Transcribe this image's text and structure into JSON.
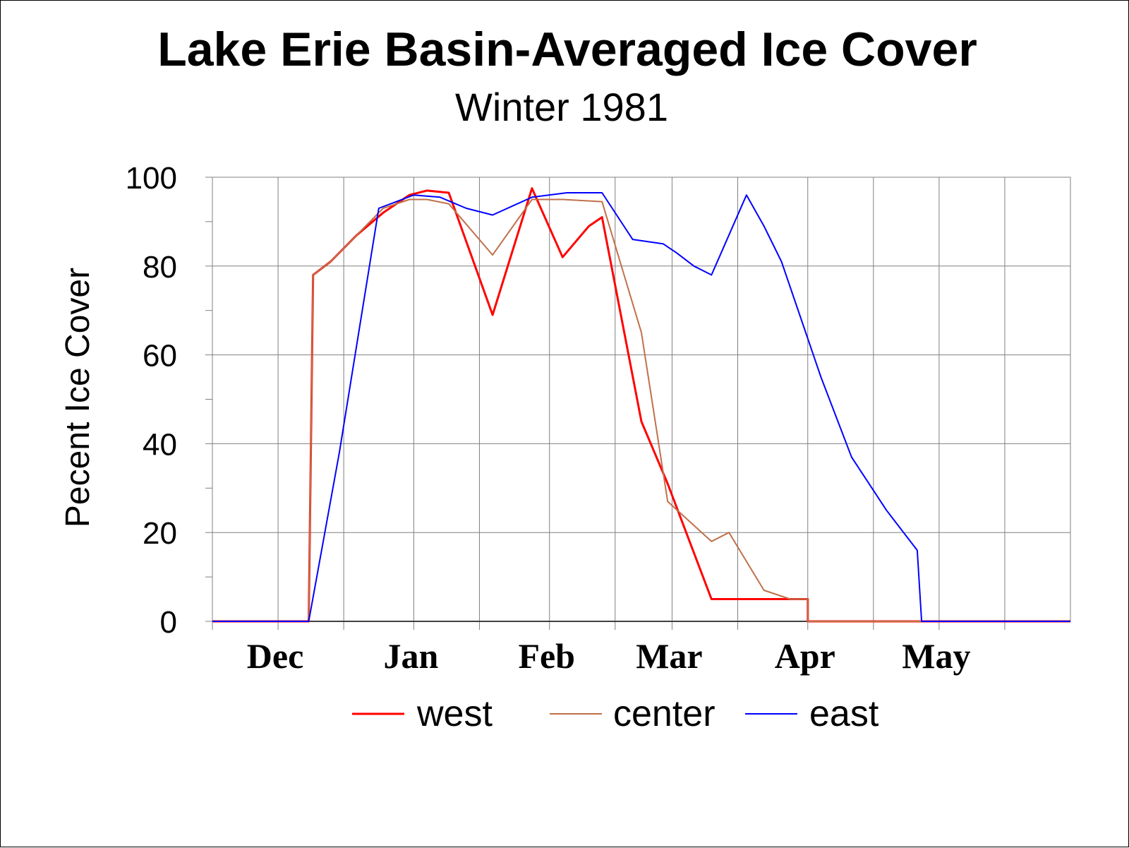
{
  "chart_data": {
    "type": "line",
    "title": "Lake Erie Basin-Averaged Ice Cover",
    "subtitle": "Winter 1981",
    "xlabel": "",
    "ylabel": "Pecent Ice Cover",
    "ylim": [
      0,
      100
    ],
    "yticks": [
      "0",
      "20",
      "40",
      "60",
      "80",
      "100"
    ],
    "xlim": [
      "Nov 16",
      "May 31"
    ],
    "months": [
      {
        "label": "Dec",
        "date": "Dec 1"
      },
      {
        "label": "Jan",
        "date": "Jan 1"
      },
      {
        "label": "Feb",
        "date": "Feb 1"
      },
      {
        "label": "Mar",
        "date": "Mar 1"
      },
      {
        "label": "Apr",
        "date": "Apr 1"
      },
      {
        "label": "May",
        "date": "May 1"
      }
    ],
    "grid": true,
    "legend_position": "bottom",
    "series": [
      {
        "name": "west",
        "color": "#ff0000",
        "points": [
          [
            "Nov 16",
            0
          ],
          [
            "Dec 8",
            0
          ],
          [
            "Dec 9",
            78
          ],
          [
            "Dec 13",
            81
          ],
          [
            "Dec 19",
            87
          ],
          [
            "Dec 25",
            92
          ],
          [
            "Dec 31",
            96
          ],
          [
            "Jan 4",
            97
          ],
          [
            "Jan 9",
            96.5
          ],
          [
            "Jan 19",
            69
          ],
          [
            "Jan 28",
            97.5
          ],
          [
            "Feb 4",
            82
          ],
          [
            "Feb 10",
            89
          ],
          [
            "Feb 13",
            91
          ],
          [
            "Feb 22",
            45
          ],
          [
            "Feb 28",
            31
          ],
          [
            "Mar 10",
            5
          ],
          [
            "Apr 1",
            5
          ],
          [
            "Apr 1",
            0
          ],
          [
            "May 31",
            0
          ]
        ]
      },
      {
        "name": "center",
        "color": "#c0704a",
        "points": [
          [
            "Nov 16",
            0
          ],
          [
            "Dec 8",
            0
          ],
          [
            "Dec 9",
            78
          ],
          [
            "Dec 13",
            81
          ],
          [
            "Dec 19",
            87
          ],
          [
            "Dec 25",
            93
          ],
          [
            "Dec 31",
            95
          ],
          [
            "Jan 4",
            95
          ],
          [
            "Jan 9",
            94
          ],
          [
            "Jan 19",
            82.5
          ],
          [
            "Jan 28",
            95
          ],
          [
            "Feb 4",
            95
          ],
          [
            "Feb 13",
            94.5
          ],
          [
            "Feb 22",
            65
          ],
          [
            "Feb 28",
            27
          ],
          [
            "Mar 10",
            18
          ],
          [
            "Mar 14",
            20
          ],
          [
            "Mar 22",
            7
          ],
          [
            "Mar 28",
            5
          ],
          [
            "Apr 1",
            5
          ],
          [
            "Apr 1",
            0
          ],
          [
            "May 31",
            0
          ]
        ]
      },
      {
        "name": "east",
        "color": "#0000ff",
        "points": [
          [
            "Nov 16",
            0
          ],
          [
            "Dec 8",
            0
          ],
          [
            "Dec 15",
            38
          ],
          [
            "Dec 24",
            93
          ],
          [
            "Jan 1",
            96
          ],
          [
            "Jan 7",
            95.5
          ],
          [
            "Jan 13",
            93
          ],
          [
            "Jan 19",
            91.5
          ],
          [
            "Jan 28",
            95.5
          ],
          [
            "Feb 5",
            96.5
          ],
          [
            "Feb 13",
            96.5
          ],
          [
            "Feb 20",
            86
          ],
          [
            "Feb 27",
            85
          ],
          [
            "Mar 2",
            83
          ],
          [
            "Mar 6",
            80
          ],
          [
            "Mar 10",
            78
          ],
          [
            "Mar 18",
            96
          ],
          [
            "Mar 22",
            89
          ],
          [
            "Mar 26",
            81
          ],
          [
            "Apr 4",
            55
          ],
          [
            "Apr 11",
            37
          ],
          [
            "Apr 19",
            25
          ],
          [
            "Apr 26",
            16
          ],
          [
            "Apr 27",
            0
          ],
          [
            "May 31",
            0
          ]
        ]
      }
    ]
  }
}
